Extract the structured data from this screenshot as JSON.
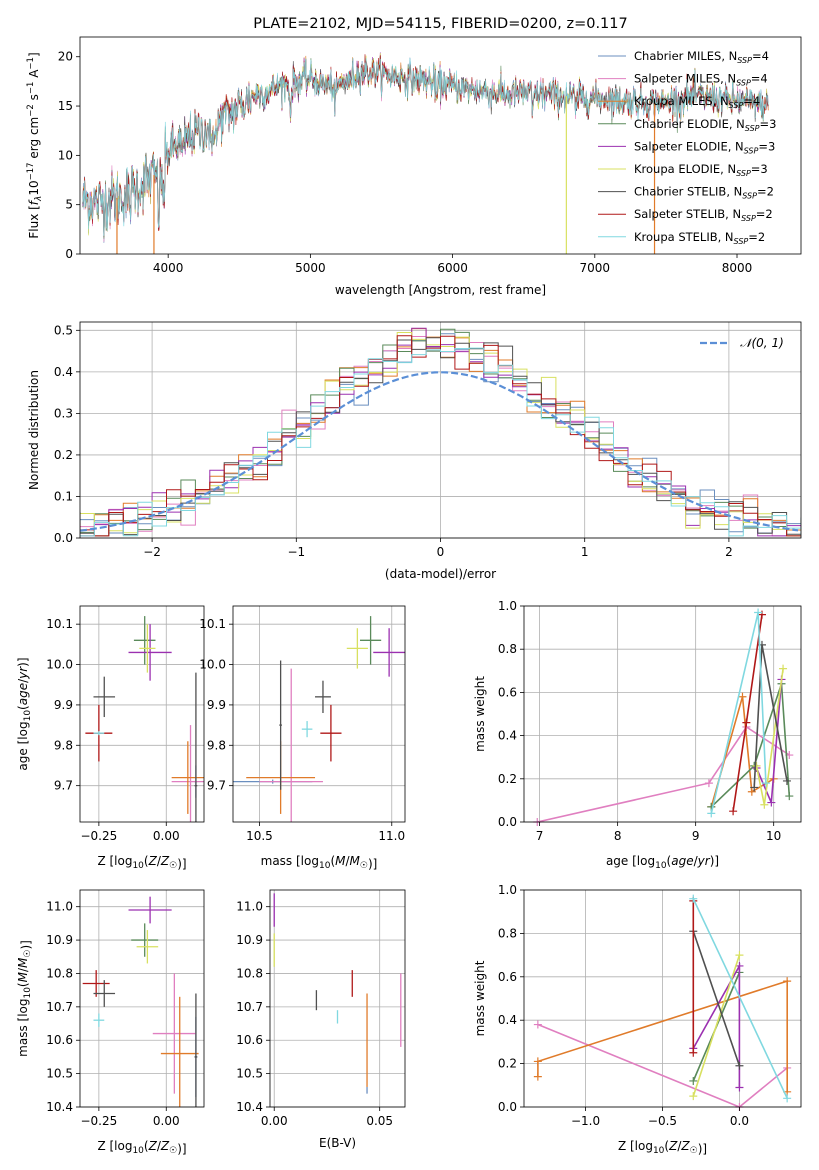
{
  "colors": {
    "Chabrier MILES": "#6b8fbf",
    "Salpeter MILES": "#e07fc0",
    "Kroupa MILES": "#e07b2a",
    "Chabrier ELODIE": "#5a8a5a",
    "Salpeter ELODIE": "#9b30b0",
    "Kroupa ELODIE": "#d8e060",
    "Chabrier STELIB": "#505050",
    "Salpeter STELIB": "#b01818",
    "Kroupa STELIB": "#80d8e0",
    "normal": "#5b8fd6"
  },
  "chart_data": [
    {
      "id": "spectrum",
      "type": "line",
      "title": "PLATE=2102, MJD=54115, FIBERID=0200, z=0.117",
      "xlabel": "wavelength [Angstrom, rest frame]",
      "ylabel": "Flux [fλ10⁻¹⁷ erg cm⁻² s⁻¹ A⁻¹]",
      "xlim": [
        3380,
        8450
      ],
      "ylim": [
        0,
        22
      ],
      "xticks": [
        4000,
        5000,
        6000,
        7000,
        8000
      ],
      "yticks": [
        0,
        5,
        10,
        15,
        20
      ],
      "legend_position": "top-right",
      "series": [
        {
          "name": "Chabrier MILES",
          "label_main": "Chabrier MILES, N",
          "label_sub": "SSP",
          "label_tail": "=4"
        },
        {
          "name": "Salpeter MILES",
          "label_main": "Salpeter MILES, N",
          "label_sub": "SSP",
          "label_tail": "=4"
        },
        {
          "name": "Kroupa MILES",
          "label_main": "Kroupa MILES, N",
          "label_sub": "SSP",
          "label_tail": "=4"
        },
        {
          "name": "Chabrier ELODIE",
          "label_main": "Chabrier ELODIE, N",
          "label_sub": "SSP",
          "label_tail": "=3"
        },
        {
          "name": "Salpeter ELODIE",
          "label_main": "Salpeter ELODIE, N",
          "label_sub": "SSP",
          "label_tail": "=3"
        },
        {
          "name": "Kroupa ELODIE",
          "label_main": "Kroupa ELODIE, N",
          "label_sub": "SSP",
          "label_tail": "=3"
        },
        {
          "name": "Chabrier STELIB",
          "label_main": "Chabrier STELIB, N",
          "label_sub": "SSP",
          "label_tail": "=2"
        },
        {
          "name": "Salpeter STELIB",
          "label_main": "Salpeter STELIB, N",
          "label_sub": "SSP",
          "label_tail": "=2"
        },
        {
          "name": "Kroupa STELIB",
          "label_main": "Kroupa STELIB, N",
          "label_sub": "SSP",
          "label_tail": "=2"
        }
      ],
      "continuum": [
        [
          3400,
          5.5
        ],
        [
          3500,
          5.2
        ],
        [
          3600,
          5.5
        ],
        [
          3700,
          6.0
        ],
        [
          3800,
          7.0
        ],
        [
          3900,
          8.0
        ],
        [
          3950,
          7.5
        ],
        [
          4000,
          10.5
        ],
        [
          4100,
          11.5
        ],
        [
          4200,
          12.2
        ],
        [
          4300,
          12.8
        ],
        [
          4400,
          14.0
        ],
        [
          4500,
          15.0
        ],
        [
          4600,
          16.0
        ],
        [
          4700,
          16.5
        ],
        [
          4800,
          17.2
        ],
        [
          4900,
          17.5
        ],
        [
          5000,
          17.8
        ],
        [
          5100,
          17.2
        ],
        [
          5200,
          17.0
        ],
        [
          5300,
          18.2
        ],
        [
          5400,
          18.5
        ],
        [
          5500,
          18.3
        ],
        [
          5600,
          18.0
        ],
        [
          5700,
          17.8
        ],
        [
          5800,
          17.6
        ],
        [
          5900,
          17.3
        ],
        [
          6000,
          17.0
        ],
        [
          6100,
          16.8
        ],
        [
          6200,
          16.6
        ],
        [
          6300,
          16.3
        ],
        [
          6400,
          16.2
        ],
        [
          6500,
          16.4
        ],
        [
          6600,
          16.2
        ],
        [
          6700,
          16.1
        ],
        [
          6800,
          16.0
        ],
        [
          6900,
          15.9
        ],
        [
          7000,
          15.8
        ],
        [
          7100,
          15.7
        ],
        [
          7200,
          15.5
        ],
        [
          7300,
          15.5
        ],
        [
          7400,
          15.3
        ],
        [
          7500,
          15.4
        ],
        [
          7600,
          15.8
        ],
        [
          7700,
          16.0
        ],
        [
          7800,
          15.9
        ],
        [
          7900,
          15.7
        ],
        [
          8000,
          15.5
        ],
        [
          8100,
          15.3
        ],
        [
          8220,
          15.0
        ]
      ],
      "dips": [
        [
          3728,
          1.5
        ],
        [
          3934,
          3.5
        ],
        [
          3969,
          3.0
        ],
        [
          4102,
          2.0
        ],
        [
          4304,
          3.0
        ],
        [
          4341,
          2.0
        ],
        [
          4861,
          3.0
        ],
        [
          5175,
          2.0
        ],
        [
          5270,
          1.0
        ],
        [
          5890,
          1.5
        ],
        [
          6563,
          2.0
        ],
        [
          6867,
          1.5
        ],
        [
          7600,
          1.0
        ]
      ],
      "gaps": [
        {
          "series": "Kroupa MILES",
          "x": 3640
        },
        {
          "series": "Kroupa MILES",
          "x": 3900
        },
        {
          "series": "Kroupa ELODIE",
          "x": 6800
        },
        {
          "series": "Kroupa MILES",
          "x": 7420
        }
      ]
    },
    {
      "id": "residuals",
      "type": "histogram",
      "xlabel": "(data-model)/error",
      "ylabel": "Normed distribution",
      "xlim": [
        -2.5,
        2.5
      ],
      "ylim": [
        0,
        0.52
      ],
      "xticks": [
        -2,
        -1,
        0,
        1,
        2
      ],
      "yticks": [
        0.0,
        0.1,
        0.2,
        0.3,
        0.4,
        0.5
      ],
      "grid": true,
      "legend_position": "top-right",
      "normal_label": "𝒩(0, 1)",
      "bin_width": 0.1
    },
    {
      "id": "age_vs_Z",
      "type": "errorbar",
      "xlabel": "Z [log10(Z/Z☉)]",
      "ylabel": "age  [log10(age/yr)]",
      "xlim": [
        -0.32,
        0.14
      ],
      "ylim": [
        9.61,
        10.145
      ],
      "xticks": [
        -0.25,
        0.0
      ],
      "yticks": [
        9.7,
        9.8,
        9.9,
        10.0,
        10.1
      ],
      "grid": true,
      "points": [
        {
          "series": "Chabrier MILES",
          "x": 0.11,
          "y": 9.71,
          "xerr": 0.005,
          "yerr": 0.04
        },
        {
          "series": "Salpeter MILES",
          "x": 0.09,
          "y": 9.71,
          "xerr": 0.07,
          "yerr": 0.14
        },
        {
          "series": "Kroupa MILES",
          "x": 0.08,
          "y": 9.72,
          "xerr": 0.06,
          "yerr": 0.09
        },
        {
          "series": "Chabrier ELODIE",
          "x": -0.08,
          "y": 10.06,
          "xerr": 0.04,
          "yerr": 0.06
        },
        {
          "series": "Salpeter ELODIE",
          "x": -0.06,
          "y": 10.03,
          "xerr": 0.08,
          "yerr": 0.07
        },
        {
          "series": "Kroupa ELODIE",
          "x": -0.07,
          "y": 10.04,
          "xerr": 0.03,
          "yerr": 0.06
        },
        {
          "series": "Chabrier STELIB",
          "x": 0.11,
          "y": 9.7,
          "xerr": 0.005,
          "yerr": 0.28
        },
        {
          "series": "Salpeter STELIB",
          "x": -0.25,
          "y": 9.83,
          "xerr": 0.05,
          "yerr": 0.07
        },
        {
          "series": "Kroupa STELIB",
          "x": -0.25,
          "y": 9.83,
          "xerr": 0.02,
          "yerr": 0.005
        },
        {
          "series": "Chabrier STELIB",
          "x": -0.23,
          "y": 9.92,
          "xerr": 0.04,
          "yerr": 0.05
        }
      ]
    },
    {
      "id": "age_vs_mass",
      "type": "errorbar",
      "xlabel": "mass [log10(M/M☉)]",
      "ylabel": "",
      "xlim": [
        10.4,
        11.05
      ],
      "ylim": [
        9.61,
        10.145
      ],
      "xticks": [
        10.5,
        11.0
      ],
      "yticks": [
        9.7,
        9.8,
        9.9,
        10.0,
        10.1
      ],
      "grid": true,
      "points": [
        {
          "series": "Chabrier MILES",
          "x": 10.55,
          "y": 9.71,
          "xerr": 0.15,
          "yerr": 0.005
        },
        {
          "series": "Salpeter MILES",
          "x": 10.62,
          "y": 9.71,
          "xerr": 0.12,
          "yerr": 0.28
        },
        {
          "series": "Kroupa MILES",
          "x": 10.58,
          "y": 9.72,
          "xerr": 0.13,
          "yerr": 0.09
        },
        {
          "series": "Chabrier ELODIE",
          "x": 10.92,
          "y": 10.06,
          "xerr": 0.04,
          "yerr": 0.06
        },
        {
          "series": "Salpeter ELODIE",
          "x": 10.99,
          "y": 10.03,
          "xerr": 0.06,
          "yerr": 0.06
        },
        {
          "series": "Kroupa ELODIE",
          "x": 10.87,
          "y": 10.04,
          "xerr": 0.04,
          "yerr": 0.05
        },
        {
          "series": "Chabrier STELIB",
          "x": 10.58,
          "y": 9.85,
          "xerr": 0.005,
          "yerr": 0.16
        },
        {
          "series": "Salpeter STELIB",
          "x": 10.77,
          "y": 9.83,
          "xerr": 0.04,
          "yerr": 0.07
        },
        {
          "series": "Kroupa STELIB",
          "x": 10.68,
          "y": 9.84,
          "xerr": 0.02,
          "yerr": 0.02
        },
        {
          "series": "Chabrier STELIB",
          "x": 10.74,
          "y": 9.92,
          "xerr": 0.03,
          "yerr": 0.04
        }
      ]
    },
    {
      "id": "massweight_vs_age",
      "type": "line",
      "xlabel": "age  [log10(age/yr)]",
      "ylabel": "mass weight",
      "xlim": [
        6.8,
        10.35
      ],
      "ylim": [
        0,
        1.0
      ],
      "xticks": [
        7,
        8,
        9,
        10
      ],
      "yticks": [
        0.0,
        0.2,
        0.4,
        0.6,
        0.8,
        1.0
      ],
      "grid": true,
      "lines": [
        {
          "series": "Salpeter MILES",
          "x": [
            6.97,
            9.17,
            9.65,
            10.2
          ],
          "y": [
            0.0,
            0.18,
            0.44,
            0.31
          ]
        },
        {
          "series": "Kroupa MILES",
          "x": [
            9.2,
            9.6,
            9.72,
            10.0
          ],
          "y": [
            0.07,
            0.58,
            0.14,
            0.2
          ]
        },
        {
          "series": "Chabrier ELODIE",
          "x": [
            9.2,
            9.75,
            10.1,
            10.2
          ],
          "y": [
            0.07,
            0.26,
            0.64,
            0.12
          ]
        },
        {
          "series": "Salpeter ELODIE",
          "x": [
            9.78,
            9.97,
            10.1
          ],
          "y": [
            0.25,
            0.09,
            0.66
          ]
        },
        {
          "series": "Kroupa ELODIE",
          "x": [
            9.78,
            9.88,
            10.12
          ],
          "y": [
            0.26,
            0.08,
            0.71
          ]
        },
        {
          "series": "Chabrier STELIB",
          "x": [
            9.75,
            9.85,
            10.17
          ],
          "y": [
            0.16,
            0.82,
            0.19
          ]
        },
        {
          "series": "Salpeter STELIB",
          "x": [
            9.48,
            9.65,
            9.85
          ],
          "y": [
            0.05,
            0.46,
            0.96
          ]
        },
        {
          "series": "Kroupa STELIB",
          "x": [
            9.2,
            9.8,
            9.9
          ],
          "y": [
            0.04,
            0.97,
            0.18
          ]
        }
      ]
    },
    {
      "id": "mass_vs_Z",
      "type": "errorbar",
      "xlabel": "Z [log10(Z/Z☉)]",
      "ylabel": "mass [log10(M/M☉)]",
      "xlim": [
        -0.32,
        0.14
      ],
      "ylim": [
        10.4,
        11.05
      ],
      "xticks": [
        -0.25,
        0.0
      ],
      "yticks": [
        10.4,
        10.5,
        10.6,
        10.7,
        10.8,
        10.9,
        11.0
      ],
      "grid": true,
      "points": [
        {
          "series": "Chabrier MILES",
          "x": 0.11,
          "y": 10.55,
          "xerr": 0.005,
          "yerr": 0.12
        },
        {
          "series": "Salpeter MILES",
          "x": 0.03,
          "y": 10.62,
          "xerr": 0.08,
          "yerr": 0.18
        },
        {
          "series": "Kroupa MILES",
          "x": 0.05,
          "y": 10.56,
          "xerr": 0.07,
          "yerr": 0.17
        },
        {
          "series": "Chabrier ELODIE",
          "x": -0.08,
          "y": 10.9,
          "xerr": 0.05,
          "yerr": 0.05
        },
        {
          "series": "Salpeter ELODIE",
          "x": -0.06,
          "y": 10.99,
          "xerr": 0.08,
          "yerr": 0.04
        },
        {
          "series": "Kroupa ELODIE",
          "x": -0.07,
          "y": 10.88,
          "xerr": 0.04,
          "yerr": 0.05
        },
        {
          "series": "Chabrier STELIB",
          "x": 0.11,
          "y": 10.55,
          "xerr": 0.005,
          "yerr": 0.19
        },
        {
          "series": "Salpeter STELIB",
          "x": -0.26,
          "y": 10.77,
          "xerr": 0.05,
          "yerr": 0.04
        },
        {
          "series": "Kroupa STELIB",
          "x": -0.25,
          "y": 10.66,
          "xerr": 0.02,
          "yerr": 0.02
        },
        {
          "series": "Chabrier STELIB",
          "x": -0.23,
          "y": 10.74,
          "xerr": 0.04,
          "yerr": 0.04
        }
      ]
    },
    {
      "id": "mass_vs_ebv",
      "type": "errorbar",
      "xlabel": "E(B-V)",
      "ylabel": "",
      "xlim": [
        -0.002,
        0.062
      ],
      "ylim": [
        10.4,
        11.05
      ],
      "xticks": [
        0.0,
        0.05
      ],
      "xtick_labels": [
        "0.00",
        "0.05"
      ],
      "yticks": [
        10.4,
        10.5,
        10.6,
        10.7,
        10.8,
        10.9,
        11.0
      ],
      "grid": true,
      "points": [
        {
          "series": "Salpeter ELODIE",
          "x": 0.0,
          "y": 10.99,
          "xerr": 0.0,
          "yerr": 0.05
        },
        {
          "series": "Kroupa ELODIE",
          "x": 0.0,
          "y": 10.87,
          "xerr": 0.0,
          "yerr": 0.05
        },
        {
          "series": "Chabrier STELIB",
          "x": 0.02,
          "y": 10.72,
          "xerr": 0.0,
          "yerr": 0.03
        },
        {
          "series": "Kroupa STELIB",
          "x": 0.03,
          "y": 10.67,
          "xerr": 0.0,
          "yerr": 0.02
        },
        {
          "series": "Salpeter STELIB",
          "x": 0.037,
          "y": 10.77,
          "xerr": 0.0,
          "yerr": 0.04
        },
        {
          "series": "Kroupa MILES",
          "x": 0.044,
          "y": 10.6,
          "xerr": 0.0,
          "yerr": 0.14
        },
        {
          "series": "Chabrier MILES",
          "x": 0.044,
          "y": 10.45,
          "xerr": 0.0,
          "yerr": 0.01
        },
        {
          "series": "Salpeter MILES",
          "x": 0.06,
          "y": 10.69,
          "xerr": 0.0,
          "yerr": 0.11
        }
      ]
    },
    {
      "id": "massweight_vs_Z",
      "type": "line",
      "xlabel": "Z [log10(Z/Z☉)]",
      "ylabel": "mass weight",
      "xlim": [
        -1.4,
        0.4
      ],
      "ylim": [
        0,
        1.0
      ],
      "xticks": [
        -1.0,
        -0.5,
        0.0
      ],
      "yticks": [
        0.0,
        0.2,
        0.4,
        0.6,
        0.8,
        1.0
      ],
      "grid": true,
      "lines": [
        {
          "series": "Salpeter MILES",
          "x": [
            -1.31,
            0.0,
            0.31
          ],
          "y": [
            0.38,
            0.0,
            0.18
          ]
        },
        {
          "series": "Kroupa MILES",
          "x": [
            -1.31,
            -1.31,
            0.31,
            0.31
          ],
          "y": [
            0.14,
            0.21,
            0.58,
            0.07
          ]
        },
        {
          "series": "Chabrier ELODIE",
          "x": [
            -0.3,
            0.0
          ],
          "y": [
            0.12,
            0.62
          ]
        },
        {
          "series": "Salpeter ELODIE",
          "x": [
            -0.3,
            0.0,
            0.0
          ],
          "y": [
            0.27,
            0.65,
            0.09
          ]
        },
        {
          "series": "Kroupa ELODIE",
          "x": [
            -0.3,
            0.0
          ],
          "y": [
            0.05,
            0.7
          ]
        },
        {
          "series": "Chabrier STELIB",
          "x": [
            -0.3,
            0.0
          ],
          "y": [
            0.81,
            0.19
          ]
        },
        {
          "series": "Salpeter STELIB",
          "x": [
            -0.3,
            -0.3
          ],
          "y": [
            0.25,
            0.95
          ]
        },
        {
          "series": "Kroupa STELIB",
          "x": [
            -0.3,
            0.31
          ],
          "y": [
            0.96,
            0.04
          ]
        }
      ]
    }
  ]
}
